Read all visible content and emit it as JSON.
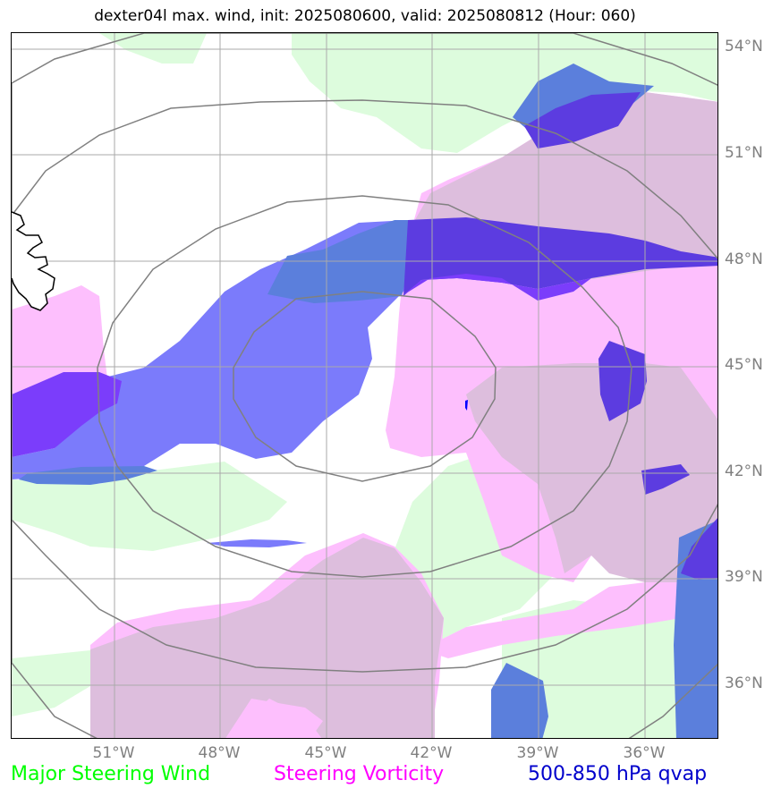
{
  "title": "dexter04l max. wind, init: 2025080600, valid: 2025080812 (Hour: 060)",
  "lat_labels": [
    "54°N",
    "51°N",
    "48°N",
    "45°N",
    "42°N",
    "39°N",
    "36°N"
  ],
  "lon_labels": [
    "51°W",
    "48°W",
    "45°W",
    "42°W",
    "39°W",
    "36°W"
  ],
  "legend": {
    "wind": {
      "label": "Major Steering Wind",
      "color": "#00ff00"
    },
    "vorticity": {
      "label": "Steering Vorticity",
      "color": "#ff00ff"
    },
    "qvap": {
      "label": "500-850 hPa qvap",
      "color": "#0000cc"
    }
  },
  "colors": {
    "wind_fill": "#ddfcdd",
    "vorticity_fill": "#fdbffd",
    "overlap_fill": "#ddbedd",
    "qvap_light": "#7b7bfb",
    "qvap_mid": "#5b7fdc",
    "qvap_dark": "#5c3ce0",
    "qvap_purple": "#7b3dfb",
    "rings": "#808080",
    "grid": "#aaaaaa",
    "coast": "#000000"
  },
  "map": {
    "central_marker": "storm-center",
    "layers": [
      "Major Steering Wind",
      "Steering Vorticity",
      "500-850 hPa qvap"
    ]
  }
}
